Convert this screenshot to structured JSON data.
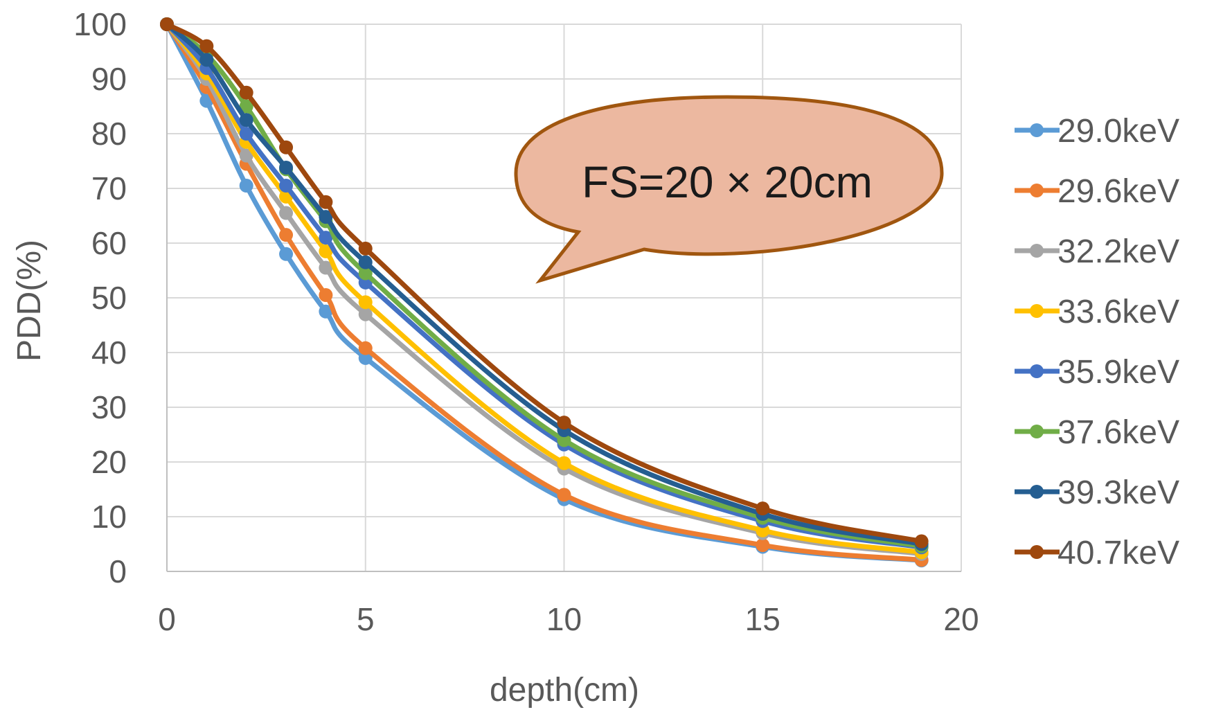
{
  "chart_data": {
    "type": "line",
    "xlabel": "depth(cm)",
    "ylabel": "PDD(%)",
    "xlim": [
      0,
      20
    ],
    "ylim": [
      0,
      100
    ],
    "x_ticks": [
      0,
      5,
      10,
      15,
      20
    ],
    "y_ticks": [
      0,
      10,
      20,
      30,
      40,
      50,
      60,
      70,
      80,
      90,
      100
    ],
    "grid": true,
    "legend_position": "right",
    "smoothed": true,
    "x": [
      0,
      1,
      2,
      3,
      4,
      5,
      10,
      15,
      19
    ],
    "series": [
      {
        "name": "29.0keV",
        "color": "#5B9BD5",
        "values": [
          100,
          86,
          70.5,
          58,
          47.5,
          39,
          13.2,
          4.5,
          2.0
        ]
      },
      {
        "name": "29.6keV",
        "color": "#ED7D31",
        "values": [
          100,
          88.5,
          74.5,
          61.5,
          50.5,
          40.8,
          14.0,
          4.8,
          2.1
        ]
      },
      {
        "name": "32.2keV",
        "color": "#A5A5A5",
        "values": [
          100,
          90,
          76,
          65.5,
          55.5,
          47,
          18.8,
          7.0,
          3.2
        ]
      },
      {
        "name": "33.6keV",
        "color": "#FFC000",
        "values": [
          100,
          91,
          78.5,
          68.5,
          58.5,
          49.2,
          19.8,
          7.5,
          3.5
        ]
      },
      {
        "name": "35.9keV",
        "color": "#4472C4",
        "values": [
          100,
          92,
          80,
          70.5,
          61,
          52.8,
          23.2,
          9.2,
          4.4
        ]
      },
      {
        "name": "37.6keV",
        "color": "#70AD47",
        "values": [
          100,
          94.5,
          85,
          73.5,
          64,
          54.5,
          24.0,
          9.8,
          4.6
        ]
      },
      {
        "name": "39.3keV",
        "color": "#255E91",
        "values": [
          100,
          93.5,
          82.5,
          73.8,
          64.8,
          56.5,
          25.8,
          10.5,
          5.0
        ]
      },
      {
        "name": "40.7keV",
        "color": "#9E480E",
        "values": [
          100,
          96,
          87.5,
          77.5,
          67.5,
          59,
          27.2,
          11.5,
          5.5
        ]
      }
    ]
  },
  "callout": {
    "text": "FS=20 × 20cm",
    "fill": "#ECB8A0",
    "stroke": "#A0560F"
  }
}
